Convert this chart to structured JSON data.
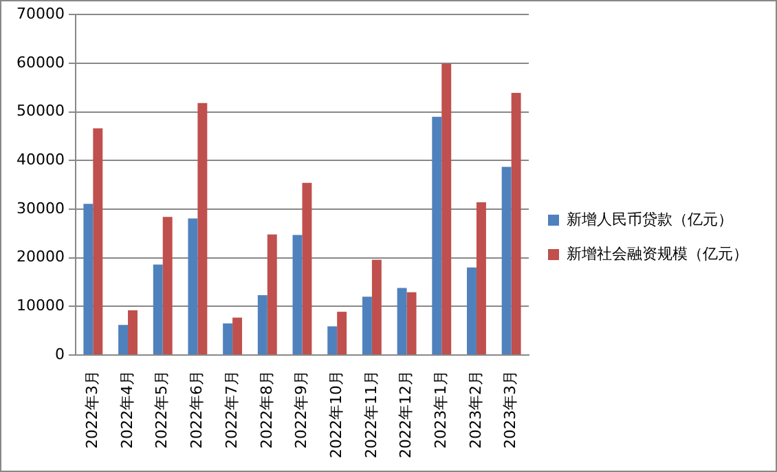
{
  "chart_data": {
    "type": "bar",
    "categories": [
      "2022年3月",
      "2022年4月",
      "2022年5月",
      "2022年6月",
      "2022年7月",
      "2022年8月",
      "2022年9月",
      "2022年10月",
      "2022年11月",
      "2022年12月",
      "2023年1月",
      "2023年2月",
      "2023年3月"
    ],
    "series": [
      {
        "name": "新增人民币贷款（亿元）",
        "color": "#4f81bd",
        "values": [
          31100,
          6200,
          18600,
          28100,
          6500,
          12300,
          24700,
          5900,
          12000,
          13800,
          49000,
          18000,
          38700
        ]
      },
      {
        "name": "新增社会融资规模（亿元）",
        "color": "#c0504d",
        "values": [
          46600,
          9200,
          28400,
          51800,
          7700,
          24800,
          35400,
          8900,
          19600,
          12900,
          59900,
          31400,
          53900
        ]
      }
    ],
    "ylim": [
      0,
      70000
    ],
    "yticks": [
      0,
      10000,
      20000,
      30000,
      40000,
      50000,
      60000,
      70000
    ],
    "grid": "y",
    "legend": "right"
  }
}
